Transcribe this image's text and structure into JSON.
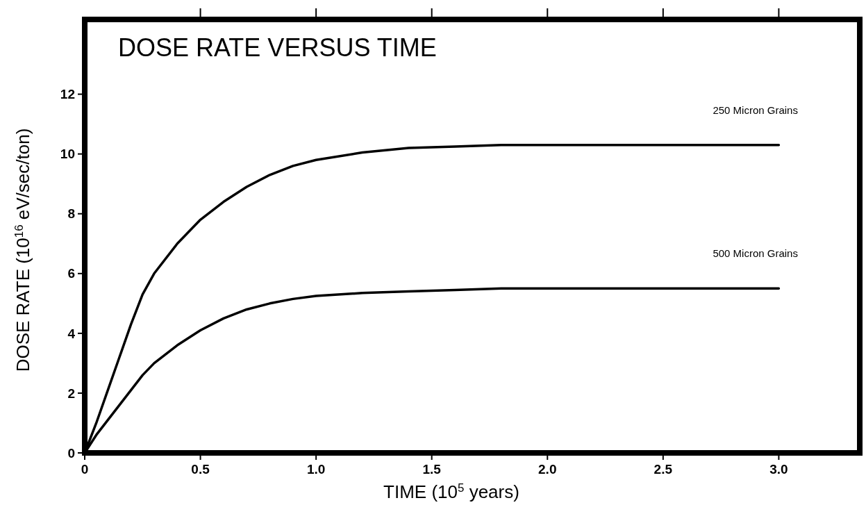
{
  "chart_data": {
    "type": "line",
    "title": "DOSE RATE VERSUS TIME",
    "xlabel": "TIME (10$^{5}$ years)",
    "ylabel": "DOSE RATE (10$^{16}$ eV/sec/ton)",
    "x": [
      0,
      0.05,
      0.1,
      0.15,
      0.2,
      0.25,
      0.3,
      0.4,
      0.5,
      0.6,
      0.7,
      0.8,
      0.9,
      1.0,
      1.2,
      1.4,
      1.6,
      1.8,
      2.0,
      2.5,
      3.0
    ],
    "series": [
      {
        "name": "250 Micron Grains",
        "color": "#000000",
        "values": [
          0,
          1.0,
          2.1,
          3.2,
          4.3,
          5.3,
          6.0,
          7.0,
          7.8,
          8.4,
          8.9,
          9.3,
          9.6,
          9.8,
          10.05,
          10.2,
          10.25,
          10.3,
          10.3,
          10.3,
          10.3
        ]
      },
      {
        "name": "500 Micron Grains",
        "color": "#000000",
        "values": [
          0,
          0.6,
          1.1,
          1.6,
          2.1,
          2.6,
          3.0,
          3.6,
          4.1,
          4.5,
          4.8,
          5.0,
          5.15,
          5.25,
          5.35,
          5.4,
          5.45,
          5.5,
          5.5,
          5.5,
          5.5
        ]
      }
    ],
    "xlim": [
      0,
      3.35
    ],
    "ylim": [
      0,
      14.5
    ],
    "xticks": [
      0,
      0.5,
      {
        "value": 1,
        "label": "1.0"
      },
      1.5,
      {
        "value": 2,
        "label": "2.0"
      },
      2.5,
      {
        "value": 3,
        "label": "3.0"
      }
    ],
    "yticks": [
      0,
      2,
      4,
      6,
      8,
      10,
      12
    ],
    "grid": false,
    "marker": "none",
    "line_style": "solid"
  }
}
